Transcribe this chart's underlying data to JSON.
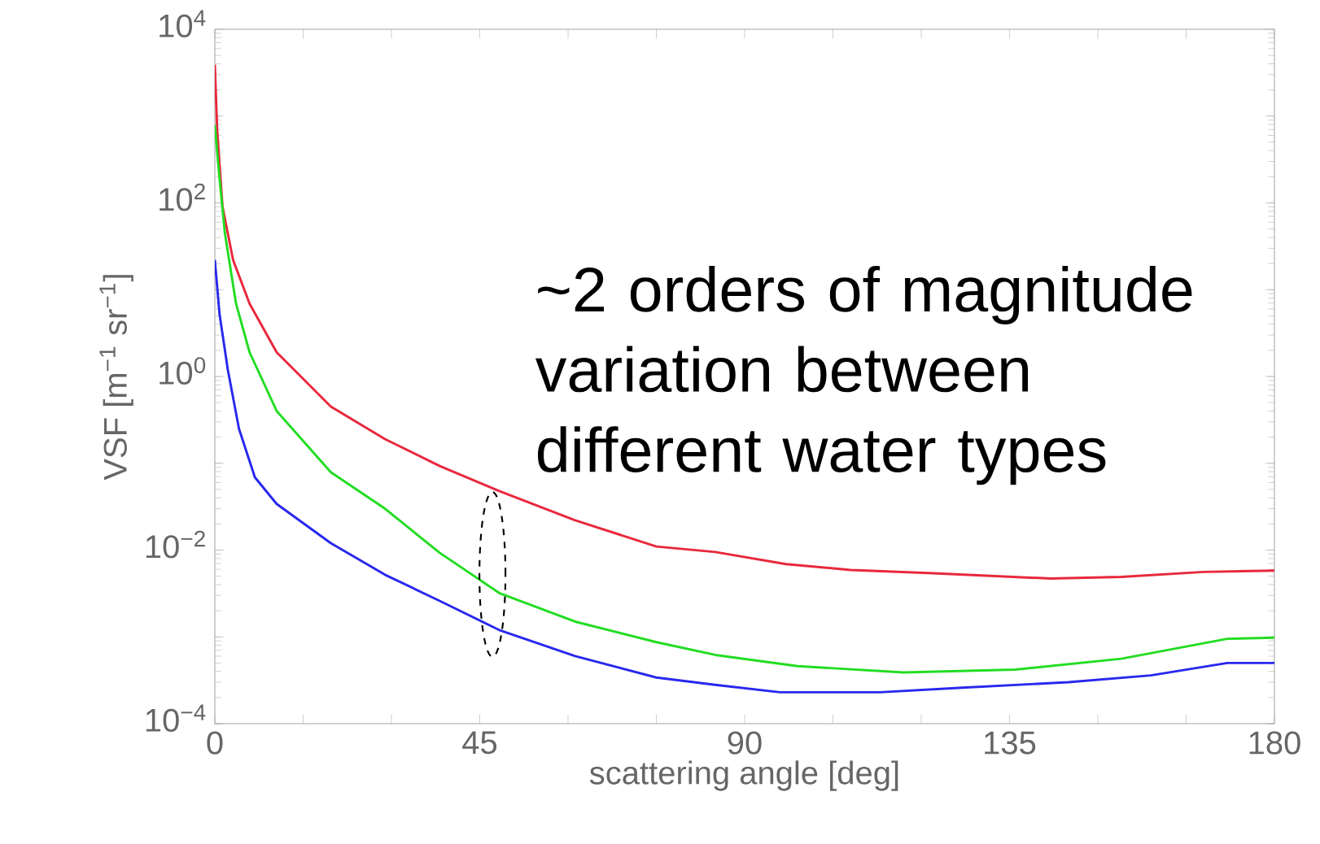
{
  "chart_data": {
    "type": "line",
    "log": "y",
    "xlabel": "scattering angle [deg]",
    "ylabel": "VSF [m$^{−1}$ sr$^{−1}$]",
    "xlim": [
      0,
      180
    ],
    "ylim": [
      0.0001,
      10000
    ],
    "xticks": [
      0,
      {
        "value": 15,
        "label": null
      },
      {
        "value": 30,
        "label": null
      },
      45,
      {
        "value": 60,
        "label": null
      },
      {
        "value": 75,
        "label": null
      },
      90,
      {
        "value": 105,
        "label": null
      },
      {
        "value": 120,
        "label": null
      },
      135,
      {
        "value": 150,
        "label": null
      },
      {
        "value": 165,
        "label": null
      },
      180
    ],
    "yticks": [
      {
        "value": 0.0001,
        "label": "10$^{−4}$"
      },
      {
        "value": 0.001,
        "label": null
      },
      {
        "value": 0.01,
        "label": "10$^{−2}$"
      },
      {
        "value": 0.1,
        "label": null
      },
      {
        "value": 1,
        "label": "10$^{0}$"
      },
      {
        "value": 10,
        "label": null
      },
      {
        "value": 100,
        "label": "10$^{2}$"
      },
      {
        "value": 1000,
        "label": null
      },
      {
        "value": 10000,
        "label": "10$^{4}$"
      }
    ],
    "annotations": [
      "~2 orders of magnitude variation between different water types"
    ],
    "series": [
      {
        "color": "#e8283c",
        "x": [
          0,
          0.4,
          1.3,
          3.1,
          5.9,
          10.5,
          19.7,
          28.9,
          38.2,
          48.3,
          61.2,
          75,
          85,
          97,
          108,
          122,
          142,
          154,
          168,
          180
        ],
        "values": [
          3900,
          690,
          91,
          22,
          6.9,
          1.9,
          0.45,
          0.19,
          0.093,
          0.048,
          0.022,
          0.011,
          0.0095,
          0.0069,
          0.0059,
          0.0054,
          0.0047,
          0.0049,
          0.0056,
          0.0058
        ]
      },
      {
        "color": "#22dd22",
        "x": [
          0,
          0.8,
          1.7,
          3.6,
          5.9,
          10.5,
          19.7,
          28.9,
          38.2,
          48.3,
          61.2,
          75,
          85,
          99,
          117,
          136,
          154,
          172,
          180
        ],
        "values": [
          790,
          190,
          45,
          6.9,
          1.9,
          0.4,
          0.079,
          0.03,
          0.0093,
          0.0032,
          0.0015,
          0.00087,
          0.00062,
          0.00046,
          0.00039,
          0.00042,
          0.00056,
          0.00095,
          0.00098
        ]
      },
      {
        "color": "#2828ee",
        "x": [
          0,
          0.8,
          2.2,
          4.1,
          6.8,
          10.5,
          19.7,
          28.9,
          38.2,
          48.3,
          61.2,
          75,
          85,
          96,
          113,
          127,
          145,
          159,
          172,
          180
        ],
        "values": [
          22,
          5.2,
          1.2,
          0.25,
          0.069,
          0.034,
          0.012,
          0.0052,
          0.0026,
          0.0012,
          0.0006,
          0.00034,
          0.00028,
          0.00023,
          0.00023,
          0.00026,
          0.0003,
          0.00036,
          0.0005,
          0.0005
        ]
      }
    ]
  }
}
